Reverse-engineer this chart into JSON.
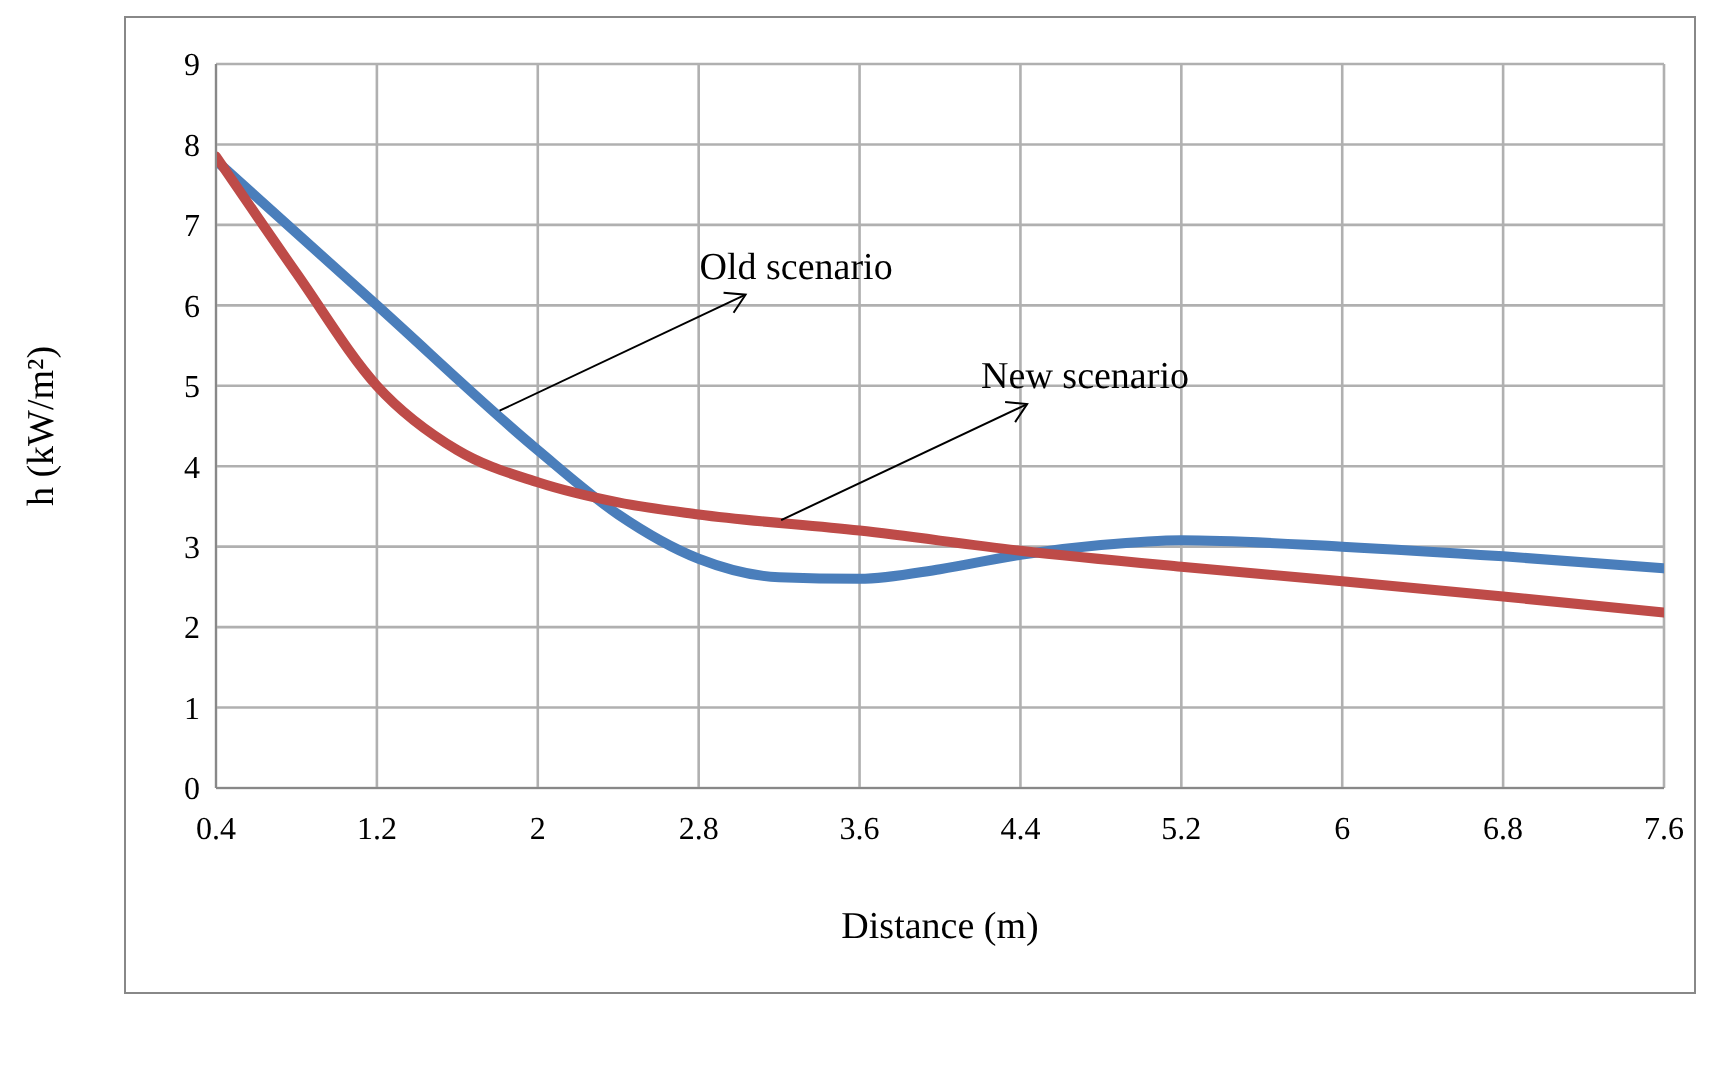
{
  "chart_data": {
    "type": "line",
    "xlabel": "Distance (m)",
    "ylabel": "h (kW/m²)",
    "xlim": [
      0.4,
      7.6
    ],
    "xticks": [
      0.4,
      1.2,
      2,
      2.8,
      3.6,
      4.4,
      5.2,
      6,
      6.8,
      7.6
    ],
    "ylim": [
      0,
      9
    ],
    "yticks": [
      0,
      1,
      2,
      3,
      4,
      5,
      6,
      7,
      8,
      9
    ],
    "grid": true,
    "marker": "none",
    "line_style": "solid",
    "series": [
      {
        "color": "#4a7ebb",
        "x": [
          0.4,
          1.2,
          2,
          2.4,
          2.8,
          3.2,
          3.6,
          4,
          4.4,
          4.8,
          5.2,
          6,
          6.8,
          7.6
        ],
        "values": [
          7.8,
          6,
          4.2,
          3.4,
          2.85,
          2.62,
          2.6,
          2.72,
          2.9,
          3.02,
          3.08,
          3,
          2.88,
          2.73
        ]
      },
      {
        "color": "#be4b48",
        "x": [
          0.4,
          0.8,
          1.2,
          1.6,
          2,
          2.4,
          2.8,
          3.6,
          4.4,
          5.2,
          6,
          6.8,
          7.6
        ],
        "values": [
          7.85,
          6.4,
          5,
          4.2,
          3.8,
          3.55,
          3.4,
          3.2,
          2.95,
          2.75,
          2.57,
          2.38,
          2.18
        ]
      }
    ],
    "annotations": [
      {
        "text": "Old scenario",
        "x": 1.81,
        "y": 4.69
      },
      {
        "text": "New scenario",
        "x": 3.21,
        "y": 3.33
      }
    ]
  }
}
